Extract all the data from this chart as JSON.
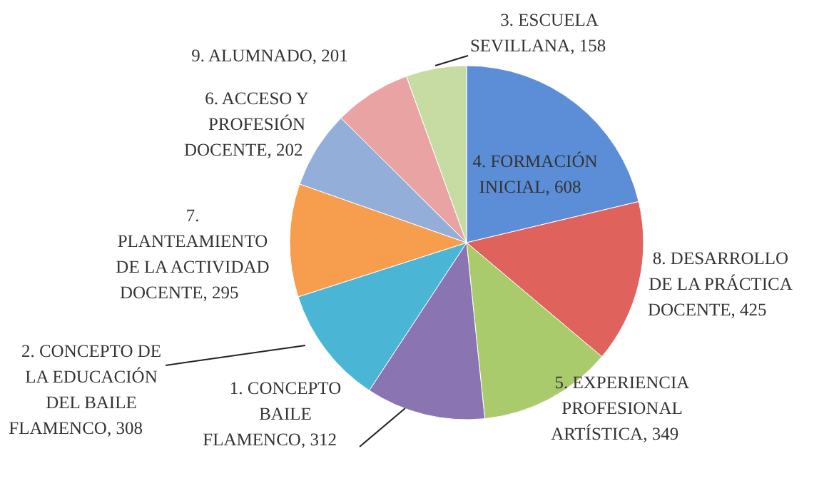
{
  "chart_data": {
    "type": "pie",
    "categories": [
      "4. FORMACIÓN INICIAL",
      "8. DESARROLLO DE LA PRÁCTICA DOCENTE",
      "5. EXPERIENCIA PROFESIONAL ARTÍSTICA",
      "1. CONCEPTO BAILE FLAMENCO",
      "2. CONCEPTO DE LA EDUCACIÓN DEL BAILE FLAMENCO",
      "7. PLANTEAMIENTO DE LA ACTIVIDAD DOCENTE",
      "6. ACCESO Y PROFESIÓN DOCENTE",
      "9. ALUMNADO",
      "3. ESCUELA SEVILLANA"
    ],
    "values": [
      608,
      425,
      349,
      312,
      308,
      295,
      202,
      201,
      158
    ],
    "colors": [
      "#5b8ed6",
      "#e0625d",
      "#aacb6c",
      "#8a74b2",
      "#4bb5d6",
      "#f69e4e",
      "#93aed9",
      "#e9a3a2",
      "#c6dca2"
    ],
    "value_labels": [
      ", 608",
      ", 425",
      ", 349",
      ", 312",
      ", 308",
      ", 295",
      ", 202",
      ", 201",
      ", 158"
    ]
  }
}
